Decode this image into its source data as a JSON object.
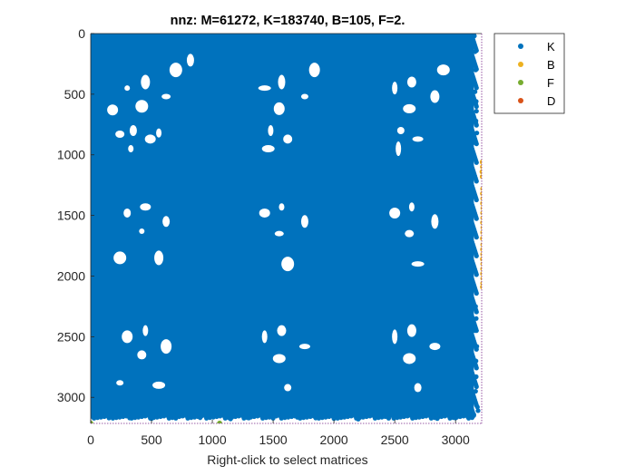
{
  "chart_data": {
    "type": "scatter",
    "title": "nnz: M=61272, K=183740, B=105, F=2.",
    "xlabel": "Right-click to select matrices",
    "ylabel": "",
    "xlim": [
      0,
      3215
    ],
    "ylim": [
      0,
      3215
    ],
    "y_reversed": true,
    "grid": false,
    "legend_position": "top-right-outside",
    "x_ticks": [
      0,
      500,
      1000,
      1500,
      2000,
      2500,
      3000
    ],
    "y_ticks": [
      0,
      500,
      1000,
      1500,
      2000,
      2500,
      3000
    ],
    "x_tick_labels": [
      "0",
      "500",
      "1000",
      "1500",
      "2000",
      "2500",
      "3000"
    ],
    "y_tick_labels": [
      "0",
      "500",
      "1000",
      "1500",
      "2000",
      "2500",
      "3000"
    ],
    "series": [
      {
        "name": "K",
        "color": "#0072BD",
        "description_region": {
          "x_range": [
            0,
            3150
          ],
          "y_range": [
            0,
            3150
          ]
        },
        "holes": [
          [
            300,
            450
          ],
          [
            450,
            400
          ],
          [
            420,
            600
          ],
          [
            350,
            800
          ],
          [
            490,
            870
          ],
          [
            330,
            950
          ],
          [
            620,
            520
          ],
          [
            700,
            300
          ],
          [
            820,
            220
          ],
          [
            180,
            630
          ],
          [
            560,
            820
          ],
          [
            240,
            830
          ],
          [
            1430,
            450
          ],
          [
            1570,
            400
          ],
          [
            1550,
            620
          ],
          [
            1480,
            800
          ],
          [
            1620,
            870
          ],
          [
            1460,
            950
          ],
          [
            1760,
            520
          ],
          [
            1840,
            300
          ],
          [
            2500,
            450
          ],
          [
            2640,
            400
          ],
          [
            2620,
            620
          ],
          [
            2550,
            800
          ],
          [
            2690,
            870
          ],
          [
            2530,
            950
          ],
          [
            2830,
            520
          ],
          [
            2900,
            300
          ],
          [
            300,
            1480
          ],
          [
            450,
            1430
          ],
          [
            420,
            1630
          ],
          [
            560,
            1850
          ],
          [
            240,
            1850
          ],
          [
            620,
            1550
          ],
          [
            1430,
            1480
          ],
          [
            1570,
            1430
          ],
          [
            1550,
            1650
          ],
          [
            1620,
            1900
          ],
          [
            1760,
            1550
          ],
          [
            2500,
            1480
          ],
          [
            2640,
            1430
          ],
          [
            2620,
            1650
          ],
          [
            2690,
            1900
          ],
          [
            2830,
            1550
          ],
          [
            300,
            2500
          ],
          [
            450,
            2450
          ],
          [
            420,
            2650
          ],
          [
            560,
            2900
          ],
          [
            240,
            2880
          ],
          [
            620,
            2580
          ],
          [
            1430,
            2500
          ],
          [
            1570,
            2450
          ],
          [
            1550,
            2680
          ],
          [
            1620,
            2920
          ],
          [
            1760,
            2580
          ],
          [
            2500,
            2500
          ],
          [
            2640,
            2450
          ],
          [
            2620,
            2680
          ],
          [
            2690,
            2920
          ],
          [
            2830,
            2580
          ]
        ],
        "edge_points": [
          [
            3155,
            20
          ],
          [
            3160,
            150
          ],
          [
            3165,
            300
          ],
          [
            3160,
            480
          ],
          [
            3170,
            560
          ],
          [
            3172,
            640
          ],
          [
            3168,
            720
          ],
          [
            3175,
            820
          ],
          [
            3160,
            900
          ],
          [
            3165,
            2250
          ],
          [
            3170,
            2350
          ],
          [
            3160,
            2450
          ],
          [
            3175,
            2580
          ],
          [
            3168,
            2700
          ],
          [
            3170,
            2830
          ],
          [
            3165,
            2950
          ],
          [
            3180,
            3080
          ],
          [
            3185,
            3110
          ],
          [
            20,
            3165
          ],
          [
            150,
            3170
          ],
          [
            320,
            3170
          ],
          [
            500,
            3175
          ],
          [
            700,
            3172
          ],
          [
            900,
            3168
          ],
          [
            1150,
            3178
          ],
          [
            1300,
            3170
          ],
          [
            1500,
            3172
          ],
          [
            1700,
            3165
          ],
          [
            1850,
            3170
          ],
          [
            2000,
            3175
          ],
          [
            2200,
            3180
          ],
          [
            2450,
            3172
          ],
          [
            2650,
            3168
          ],
          [
            2850,
            3175
          ],
          [
            3000,
            3170
          ],
          [
            3100,
            3160
          ]
        ]
      },
      {
        "name": "B",
        "color": "#EDB120",
        "points": [
          [
            3220,
            1060
          ],
          [
            3222,
            1100
          ],
          [
            3218,
            1140
          ],
          [
            3220,
            1180
          ],
          [
            3224,
            1280
          ],
          [
            3222,
            1320
          ],
          [
            3225,
            1360
          ],
          [
            3223,
            1400
          ],
          [
            3226,
            1440
          ],
          [
            3224,
            1480
          ],
          [
            3225,
            1520
          ],
          [
            3223,
            1560
          ],
          [
            3226,
            1600
          ],
          [
            3224,
            1640
          ],
          [
            3222,
            1690
          ],
          [
            3225,
            1740
          ],
          [
            3223,
            1780
          ],
          [
            3224,
            1820
          ],
          [
            3222,
            1860
          ],
          [
            3225,
            1900
          ],
          [
            3224,
            1940
          ],
          [
            3223,
            1980
          ],
          [
            3225,
            2020
          ],
          [
            3224,
            2060
          ],
          [
            3222,
            2090
          ]
        ]
      },
      {
        "name": "F",
        "color": "#77AC30",
        "points": [
          [
            0,
            3213
          ],
          [
            1060,
            3213
          ]
        ]
      },
      {
        "name": "D",
        "color": "#D95319",
        "points": []
      }
    ]
  }
}
